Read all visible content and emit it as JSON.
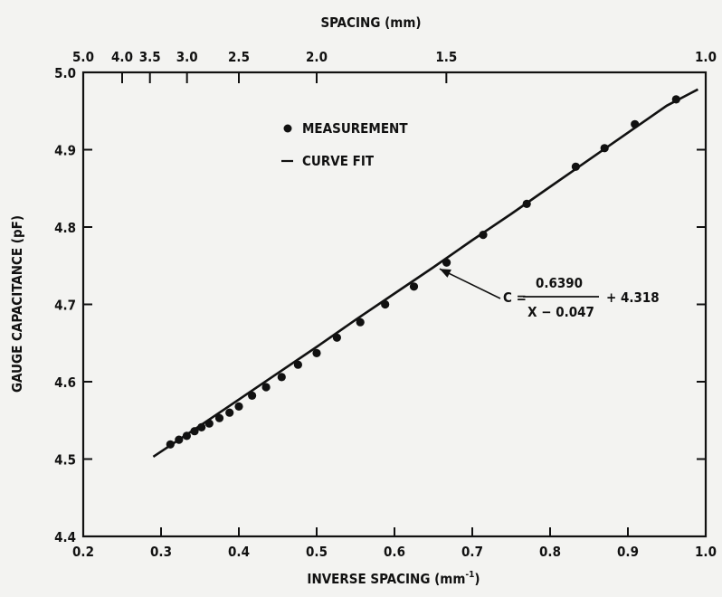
{
  "chart_data": {
    "type": "scatter",
    "xlabel_base": "INVERSE SPACING (mm",
    "xlabel_sup": "-1",
    "xlabel_tail": ")",
    "ylabel": "GAUGE CAPACITANCE (pF)",
    "top_axis_label": "SPACING (mm)",
    "xlim": [
      0.2,
      1.0
    ],
    "ylim": [
      4.4,
      5.0
    ],
    "x_ticks": [
      0.2,
      0.3,
      0.4,
      0.5,
      0.6,
      0.7,
      0.8,
      0.9,
      1.0
    ],
    "x_tick_labels": [
      "0.2",
      "0.3",
      "0.4",
      "0.5",
      "0.6",
      "0.7",
      "0.8",
      "0.9",
      "1.0"
    ],
    "y_ticks": [
      4.4,
      4.5,
      4.6,
      4.7,
      4.8,
      4.9,
      5.0
    ],
    "y_tick_labels": [
      "4.4",
      "4.5",
      "4.6",
      "4.7",
      "4.8",
      "4.9",
      "5.0"
    ],
    "top_ticks_mm": [
      5.0,
      4.0,
      3.5,
      3.0,
      2.5,
      2.0,
      1.5,
      1.0
    ],
    "top_tick_labels": [
      "5.0",
      "4.0",
      "3.5",
      "3.0",
      "2.5",
      "2.0",
      "1.5",
      "1.0"
    ],
    "grid": false,
    "legend_position": "top-left",
    "series": [
      {
        "name": "MEASUREMENT",
        "kind": "points",
        "x": [
          0.312,
          0.323,
          0.333,
          0.343,
          0.352,
          0.362,
          0.375,
          0.388,
          0.4,
          0.417,
          0.435,
          0.455,
          0.476,
          0.5,
          0.526,
          0.556,
          0.588,
          0.625,
          0.667,
          0.714,
          0.77,
          0.833,
          0.87,
          0.909,
          0.962
        ],
        "y": [
          4.519,
          4.525,
          4.53,
          4.536,
          4.541,
          4.546,
          4.553,
          4.56,
          4.568,
          4.582,
          4.593,
          4.606,
          4.622,
          4.637,
          4.657,
          4.677,
          4.7,
          4.723,
          4.754,
          4.79,
          4.83,
          4.878,
          4.902,
          4.933,
          4.965
        ]
      },
      {
        "name": "CURVE FIT",
        "kind": "line",
        "x": [
          0.29,
          0.35,
          0.4,
          0.45,
          0.5,
          0.55,
          0.6,
          0.65,
          0.7,
          0.75,
          0.8,
          0.85,
          0.9,
          0.95,
          0.99
        ],
        "y": [
          4.503,
          4.543,
          4.577,
          4.611,
          4.645,
          4.68,
          4.714,
          4.748,
          4.783,
          4.817,
          4.852,
          4.887,
          4.922,
          4.957,
          4.978
        ]
      }
    ],
    "annotation": {
      "lhs": "C =",
      "numerator": "0.6390",
      "denominator": "X − 0.047",
      "tail": "+ 4.318",
      "points_to": [
        0.658,
        4.746
      ]
    }
  },
  "colors": {
    "ink": "#111111",
    "background": "#f3f3f1"
  }
}
